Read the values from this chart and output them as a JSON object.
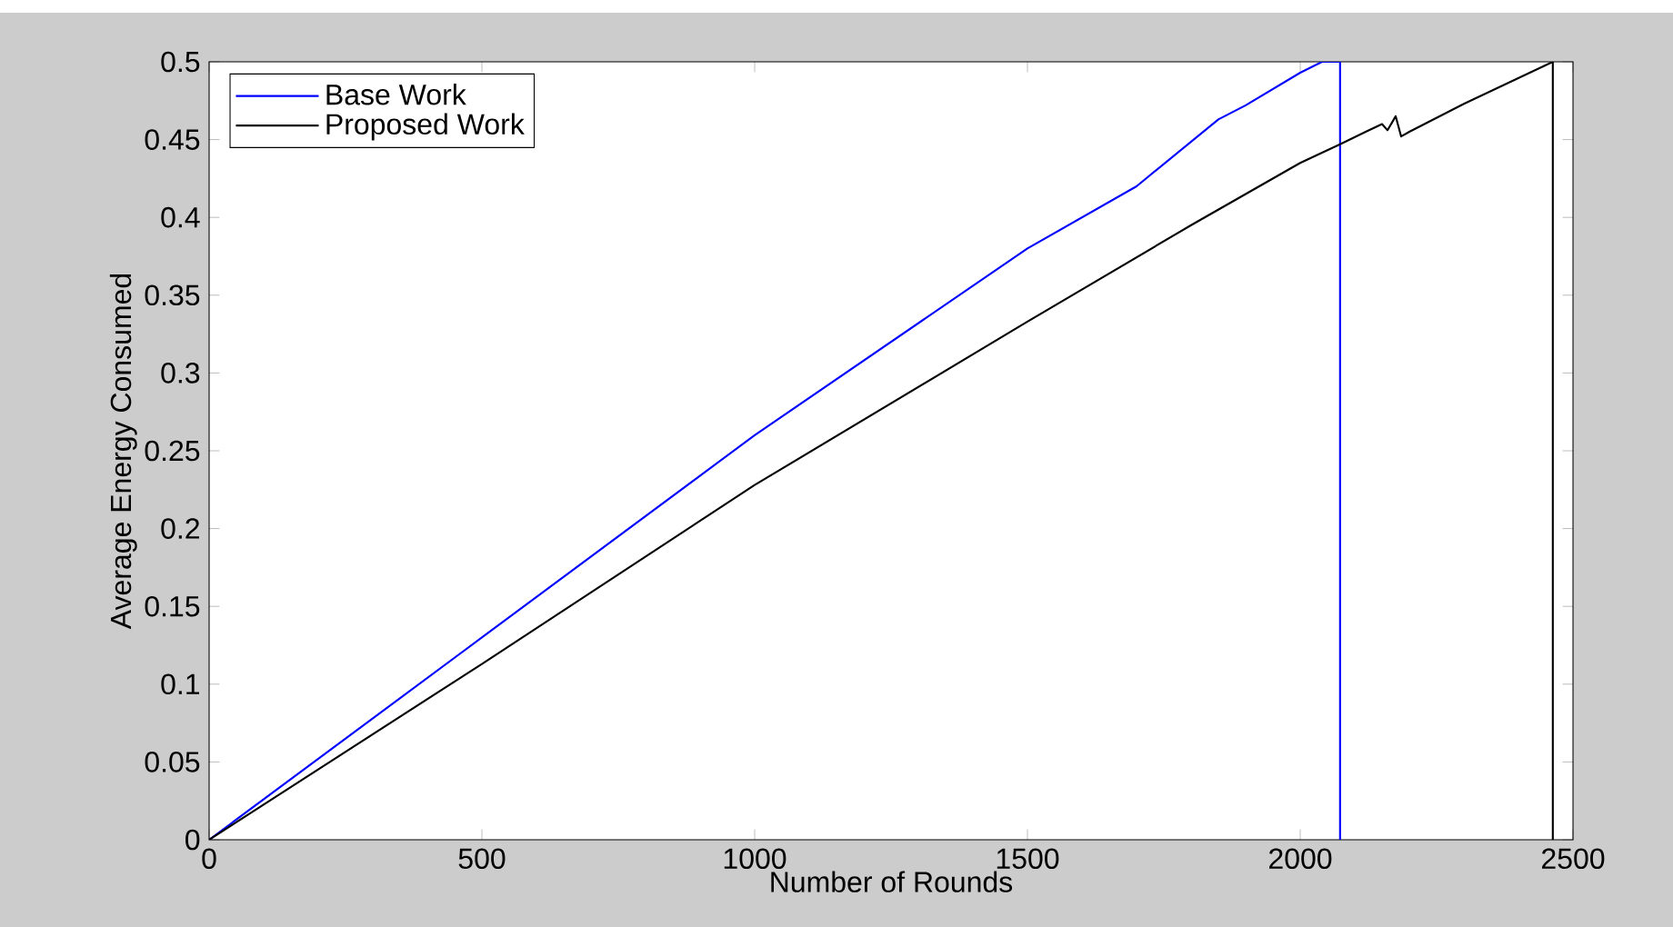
{
  "chart_data": {
    "type": "line",
    "xlabel": "Number of Rounds",
    "ylabel": "Average Energy Consumed",
    "xlim": [
      0,
      2500
    ],
    "xticks": [
      0,
      500,
      1000,
      1500,
      2000,
      2500
    ],
    "ylim": [
      0,
      0.5
    ],
    "yticks": [
      0,
      0.05,
      0.1,
      0.15,
      0.2,
      0.25,
      0.3,
      0.35,
      0.4,
      0.45,
      0.5
    ],
    "grid": false,
    "legend": "top left",
    "marker": "none",
    "line_style": "solid",
    "series": [
      {
        "name": "Base Work",
        "color": "#0000ff",
        "x": [
          0,
          500,
          1000,
          1500,
          1700,
          1850,
          1900,
          2000,
          2040,
          2073,
          2073
        ],
        "values": [
          0,
          0.13,
          0.26,
          0.38,
          0.42,
          0.463,
          0.472,
          0.493,
          0.5,
          0.5,
          0
        ]
      },
      {
        "name": "Proposed Work",
        "color": "#000000",
        "x": [
          0,
          500,
          1000,
          1500,
          1800,
          2000,
          2073,
          2120,
          2150,
          2160,
          2175,
          2185,
          2200,
          2300,
          2463,
          2463
        ],
        "values": [
          0,
          0.113,
          0.228,
          0.333,
          0.395,
          0.435,
          0.447,
          0.455,
          0.46,
          0.456,
          0.465,
          0.452,
          0.455,
          0.473,
          0.5,
          0
        ]
      }
    ]
  }
}
